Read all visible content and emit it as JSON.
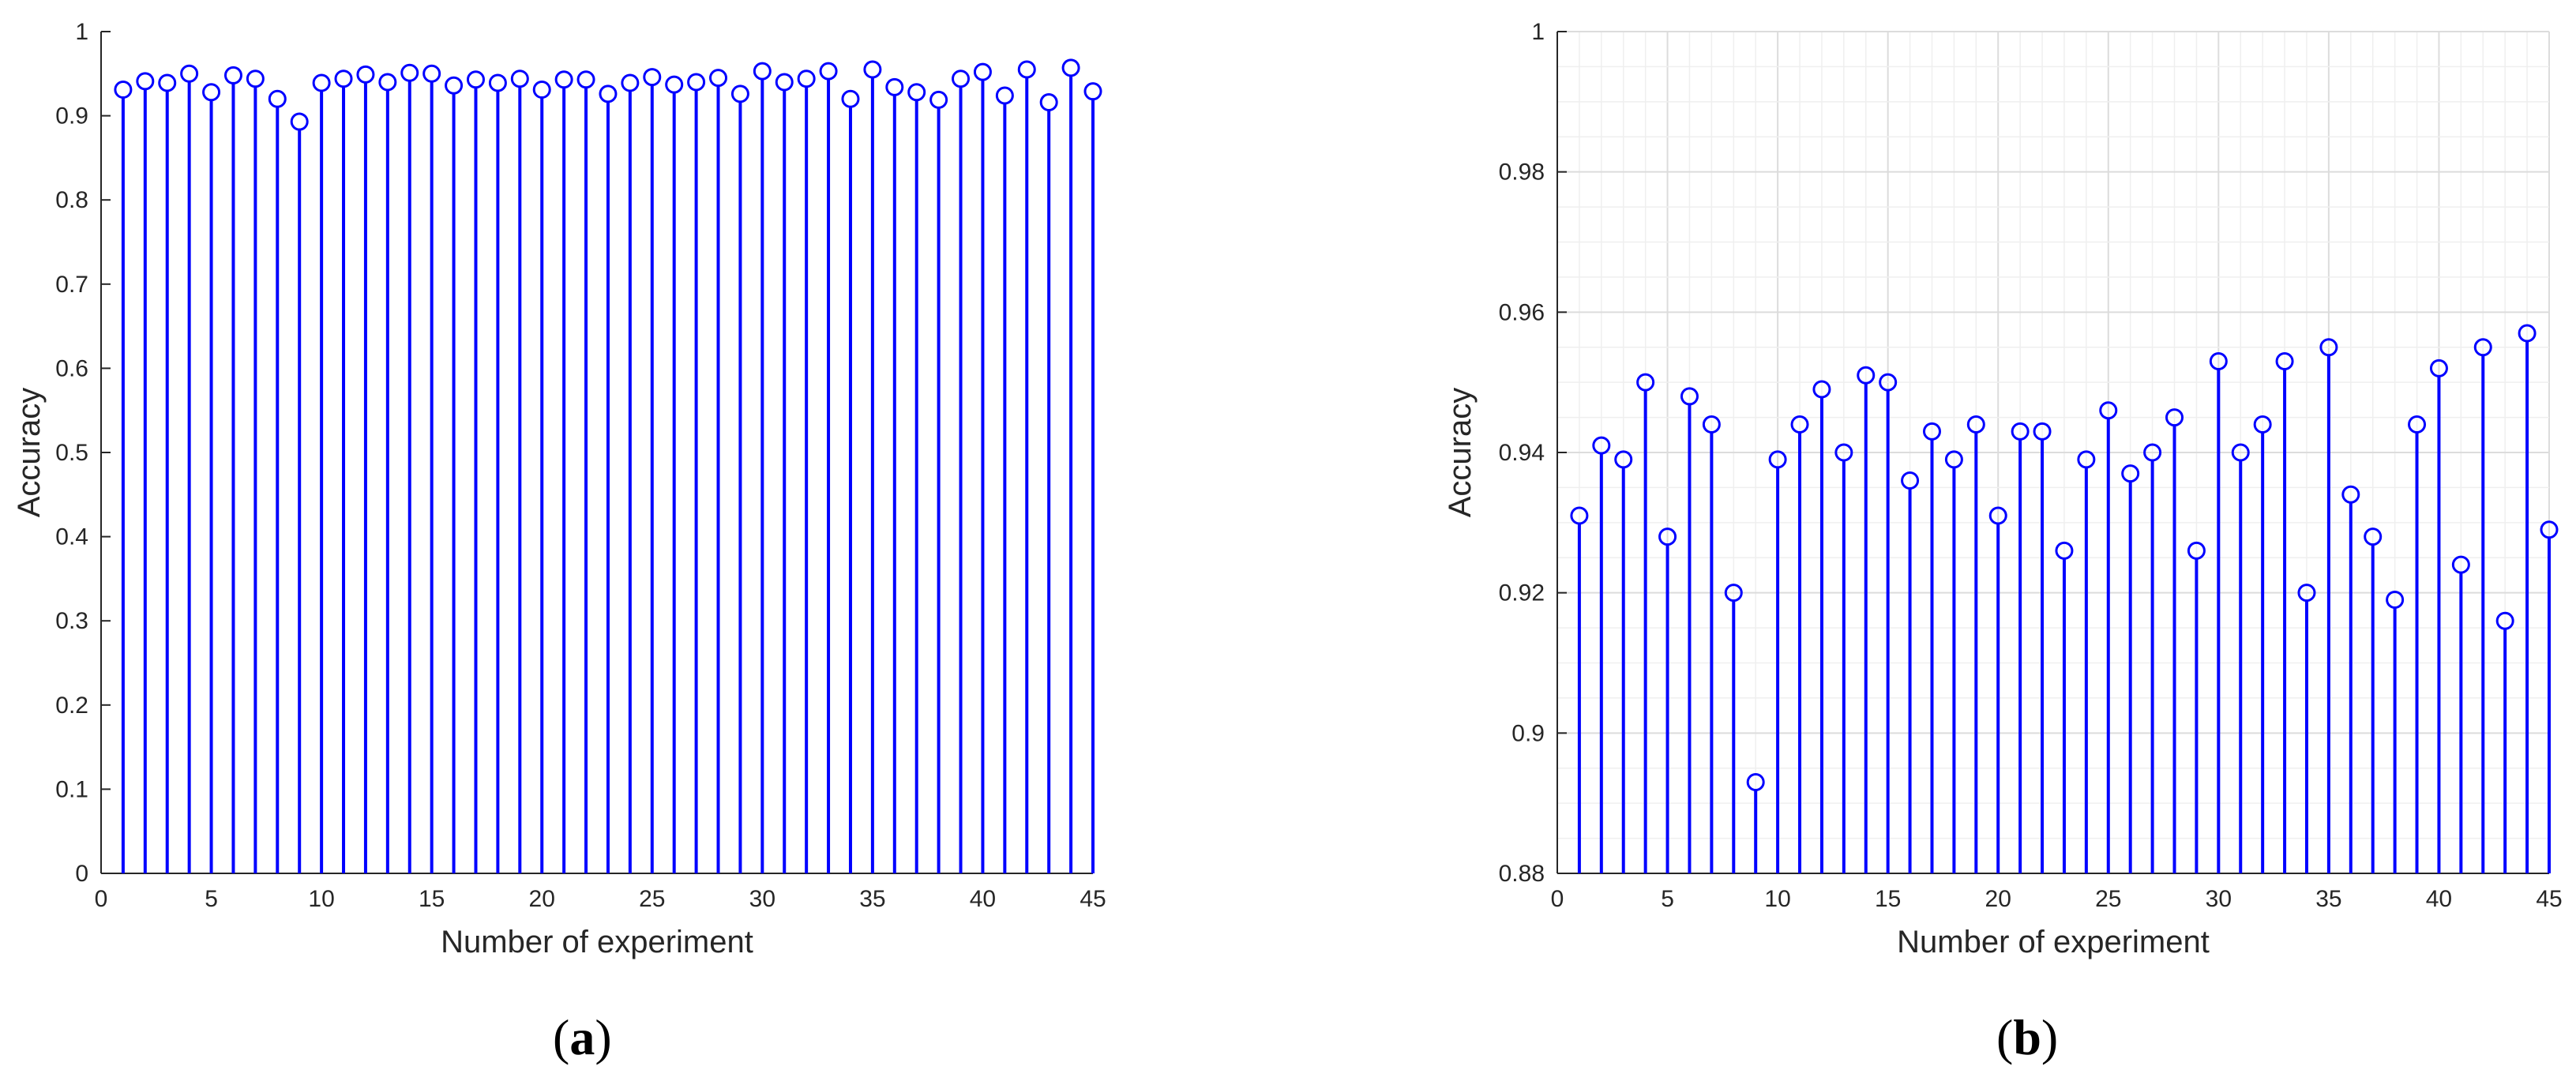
{
  "chart_data": [
    {
      "type": "stem",
      "panel": "a",
      "xlabel": "Number of experiment",
      "ylabel": "Accuracy",
      "xlim": [
        0,
        45
      ],
      "ylim": [
        0,
        1
      ],
      "xticks": [
        0,
        5,
        10,
        15,
        20,
        25,
        30,
        35,
        40,
        45
      ],
      "yticks": [
        0,
        0.1,
        0.2,
        0.3,
        0.4,
        0.5,
        0.6,
        0.7,
        0.8,
        0.9,
        1
      ],
      "grid": false,
      "color": "#0000ff",
      "x": [
        1,
        2,
        3,
        4,
        5,
        6,
        7,
        8,
        9,
        10,
        11,
        12,
        13,
        14,
        15,
        16,
        17,
        18,
        19,
        20,
        21,
        22,
        23,
        24,
        25,
        26,
        27,
        28,
        29,
        30,
        31,
        32,
        33,
        34,
        35,
        36,
        37,
        38,
        39,
        40,
        41,
        42,
        43,
        44,
        45
      ],
      "values": [
        0.931,
        0.941,
        0.939,
        0.95,
        0.928,
        0.948,
        0.944,
        0.92,
        0.893,
        0.939,
        0.944,
        0.949,
        0.94,
        0.951,
        0.95,
        0.936,
        0.943,
        0.939,
        0.944,
        0.931,
        0.943,
        0.943,
        0.926,
        0.939,
        0.946,
        0.937,
        0.94,
        0.945,
        0.926,
        0.953,
        0.94,
        0.944,
        0.953,
        0.92,
        0.955,
        0.934,
        0.928,
        0.919,
        0.944,
        0.952,
        0.924,
        0.955,
        0.916,
        0.957,
        0.929
      ]
    },
    {
      "type": "stem",
      "panel": "b",
      "xlabel": "Number of experiment",
      "ylabel": "Accuracy",
      "xlim": [
        0,
        45
      ],
      "ylim": [
        0.88,
        1
      ],
      "xticks": [
        0,
        5,
        10,
        15,
        20,
        25,
        30,
        35,
        40,
        45
      ],
      "yticks": [
        0.88,
        0.9,
        0.92,
        0.94,
        0.96,
        0.98,
        1
      ],
      "ytick_labels": [
        "0.88",
        "0.9",
        "0.92",
        "0.94",
        "0.96",
        "0.98",
        "1"
      ],
      "grid": true,
      "color": "#0000ff",
      "x": [
        1,
        2,
        3,
        4,
        5,
        6,
        7,
        8,
        9,
        10,
        11,
        12,
        13,
        14,
        15,
        16,
        17,
        18,
        19,
        20,
        21,
        22,
        23,
        24,
        25,
        26,
        27,
        28,
        29,
        30,
        31,
        32,
        33,
        34,
        35,
        36,
        37,
        38,
        39,
        40,
        41,
        42,
        43,
        44,
        45
      ],
      "values": [
        0.931,
        0.941,
        0.939,
        0.95,
        0.928,
        0.948,
        0.944,
        0.92,
        0.893,
        0.939,
        0.944,
        0.949,
        0.94,
        0.951,
        0.95,
        0.936,
        0.943,
        0.939,
        0.944,
        0.931,
        0.943,
        0.943,
        0.926,
        0.939,
        0.946,
        0.937,
        0.94,
        0.945,
        0.926,
        0.953,
        0.94,
        0.944,
        0.953,
        0.92,
        0.955,
        0.934,
        0.928,
        0.919,
        0.944,
        0.952,
        0.924,
        0.955,
        0.916,
        0.957,
        0.929
      ]
    }
  ],
  "captions": {
    "a": {
      "open": "(",
      "letter": "a",
      "close": ")"
    },
    "b": {
      "open": "(",
      "letter": "b",
      "close": ")"
    }
  }
}
